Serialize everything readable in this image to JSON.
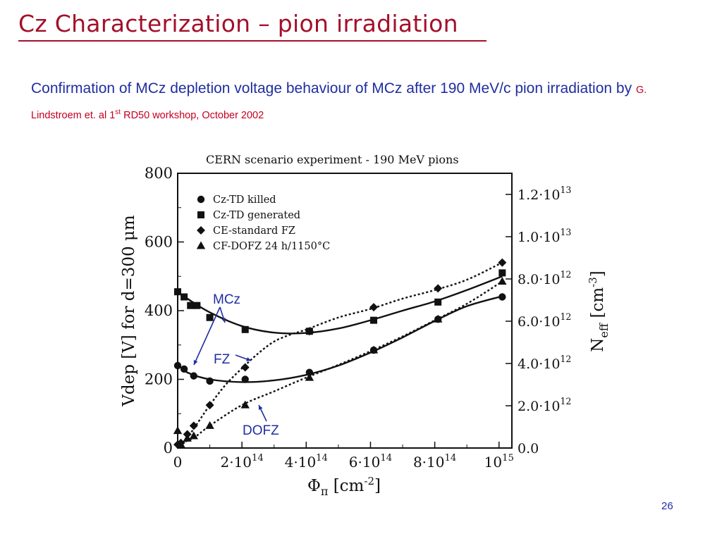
{
  "slide": {
    "title": "Cz Characterization – pion irradiation",
    "subtitle_main": "Confirmation of MCz depletion voltage behaviour of MCz after 190 MeV/c pion irradiation by",
    "subtitle_ref_pre": "G. Lindstroem et. al 1",
    "subtitle_ref_sup": "st",
    "subtitle_ref_post": " RD50 workshop, October 2002",
    "page_number": "26"
  },
  "chart_data": {
    "type": "scatter",
    "title": "CERN scenario experiment - 190 MeV pions",
    "x_axis": {
      "label": "Φπ [cm-2]",
      "range": [
        0,
        1040000000000000.0
      ],
      "ticks": [
        {
          "value": 0,
          "base": "0",
          "exp": ""
        },
        {
          "value": 200000000000000.0,
          "base": "2·10",
          "exp": "14"
        },
        {
          "value": 400000000000000.0,
          "base": "4·10",
          "exp": "14"
        },
        {
          "value": 600000000000000.0,
          "base": "6·10",
          "exp": "14"
        },
        {
          "value": 800000000000000.0,
          "base": "8·10",
          "exp": "14"
        },
        {
          "value": 1000000000000000.0,
          "base": "10",
          "exp": "15"
        }
      ]
    },
    "y_axis": {
      "label": "Vdep [V] for d=300 μm",
      "range": [
        0,
        800
      ],
      "ticks": [
        0,
        200,
        400,
        600,
        800
      ]
    },
    "y2_axis": {
      "label": "Neff [cm-3]",
      "range": [
        0,
        13000000000000.0
      ],
      "ticks": [
        {
          "value": 0,
          "base": "0.0",
          "exp": ""
        },
        {
          "value": 2000000000000.0,
          "base": "2.0·10",
          "exp": "12"
        },
        {
          "value": 4000000000000.0,
          "base": "4.0·10",
          "exp": "12"
        },
        {
          "value": 6000000000000.0,
          "base": "6.0·10",
          "exp": "12"
        },
        {
          "value": 8000000000000.0,
          "base": "8.0·10",
          "exp": "12"
        },
        {
          "value": 10000000000000.0,
          "base": "1.0·10",
          "exp": "13"
        },
        {
          "value": 12000000000000.0,
          "base": "1.2·10",
          "exp": "13"
        }
      ]
    },
    "legend_position": "top-left",
    "series": [
      {
        "name": "Cz-TD killed",
        "marker": "circle",
        "x": [
          0,
          20000000000000.0,
          50000000000000.0,
          100000000000000.0,
          210000000000000.0,
          410000000000000.0,
          610000000000000.0,
          810000000000000.0,
          1010000000000000.0
        ],
        "y": [
          240,
          230,
          210,
          195,
          200,
          220,
          285,
          375,
          440
        ],
        "fit_x": [
          0,
          30000000000000.0,
          100000000000000.0,
          200000000000000.0,
          300000000000000.0,
          400000000000000.0,
          500000000000000.0,
          600000000000000.0,
          700000000000000.0,
          800000000000000.0,
          900000000000000.0,
          1010000000000000.0
        ],
        "fit_y": [
          245,
          220,
          200,
          192,
          197,
          213,
          240,
          278,
          322,
          370,
          413,
          442
        ]
      },
      {
        "name": "Cz-TD generated",
        "marker": "square",
        "x": [
          0,
          20000000000000.0,
          40000000000000.0,
          60000000000000.0,
          100000000000000.0,
          210000000000000.0,
          410000000000000.0,
          610000000000000.0,
          810000000000000.0,
          1010000000000000.0
        ],
        "y": [
          455,
          440,
          415,
          415,
          380,
          345,
          340,
          372,
          425,
          510
        ],
        "fit_x": [
          0,
          30000000000000.0,
          100000000000000.0,
          200000000000000.0,
          300000000000000.0,
          400000000000000.0,
          500000000000000.0,
          600000000000000.0,
          700000000000000.0,
          800000000000000.0,
          900000000000000.0,
          1010000000000000.0
        ],
        "fit_y": [
          455,
          435,
          395,
          355,
          336,
          335,
          348,
          372,
          400,
          427,
          460,
          500
        ]
      },
      {
        "name": "CE-standard FZ",
        "marker": "diamond",
        "x": [
          0,
          10000000000000.0,
          30000000000000.0,
          50000000000000.0,
          100000000000000.0,
          210000000000000.0,
          410000000000000.0,
          610000000000000.0,
          810000000000000.0,
          1010000000000000.0
        ],
        "y": [
          10,
          15,
          40,
          65,
          125,
          235,
          340,
          410,
          465,
          540
        ],
        "fit_x": [
          0,
          30000000000000.0,
          60000000000000.0,
          100000000000000.0,
          150000000000000.0,
          200000000000000.0,
          250000000000000.0,
          300000000000000.0,
          350000000000000.0,
          400000000000000.0,
          500000000000000.0,
          600000000000000.0,
          700000000000000.0,
          800000000000000.0,
          900000000000000.0,
          1010000000000000.0
        ],
        "fit_y": [
          0,
          30,
          70,
          125,
          185,
          232,
          275,
          310,
          330,
          345,
          380,
          405,
          435,
          460,
          490,
          540
        ]
      },
      {
        "name": "CF-DOFZ 24 h/1150°C",
        "marker": "triangle",
        "x": [
          0,
          10000000000000.0,
          30000000000000.0,
          50000000000000.0,
          100000000000000.0,
          210000000000000.0,
          410000000000000.0,
          610000000000000.0,
          810000000000000.0,
          1010000000000000.0
        ],
        "y": [
          50,
          10,
          28,
          35,
          65,
          125,
          205,
          285,
          375,
          485
        ],
        "fit_x": [
          0,
          50000000000000.0,
          100000000000000.0,
          200000000000000.0,
          300000000000000.0,
          400000000000000.0,
          500000000000000.0,
          600000000000000.0,
          700000000000000.0,
          800000000000000.0,
          900000000000000.0,
          1010000000000000.0
        ],
        "fit_y": [
          10,
          30,
          65,
          125,
          165,
          205,
          242,
          282,
          325,
          372,
          420,
          485
        ]
      }
    ],
    "annotations": [
      {
        "text": "MCz",
        "points_to": [
          "Cz-TD generated",
          "Cz-TD killed"
        ]
      },
      {
        "text": "FZ",
        "points_to": [
          "CE-standard FZ"
        ]
      },
      {
        "text": "DOFZ",
        "points_to": [
          "CF-DOFZ 24 h/1150°C"
        ]
      }
    ]
  }
}
